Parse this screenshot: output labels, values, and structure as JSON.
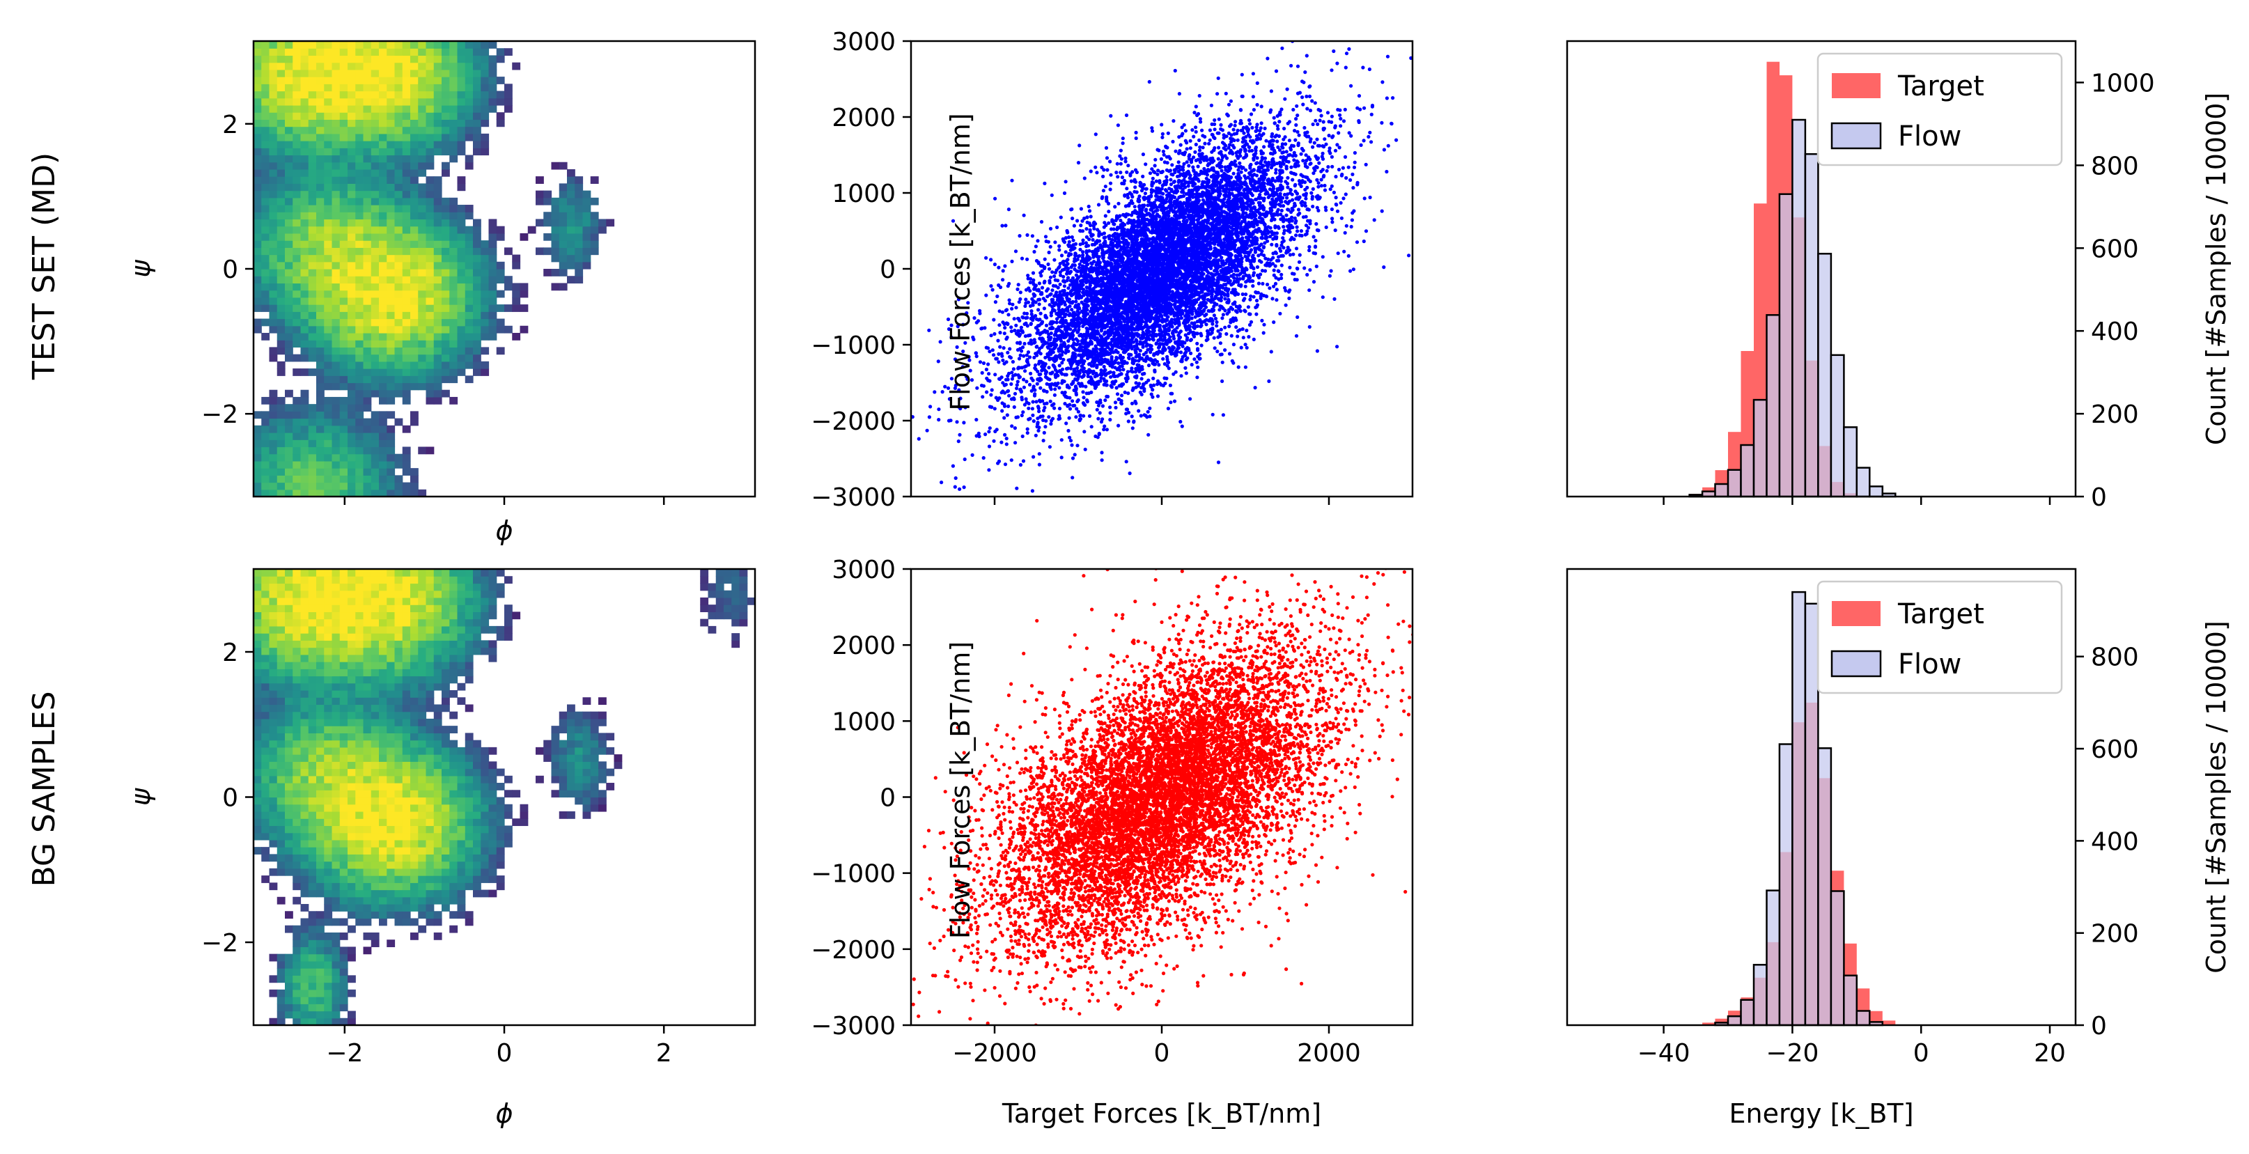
{
  "row_labels": [
    "TEST SET (MD)",
    "BG SAMPLES"
  ],
  "colors": {
    "target": "#ff6666",
    "flow_fill": "#c5c9ef",
    "scatter_test": "#0000ff",
    "scatter_bg": "#ff0000",
    "viridis": [
      "#440154",
      "#472c7a",
      "#3b518b",
      "#2c718e",
      "#21908d",
      "#27ad81",
      "#5cc863",
      "#aadc32",
      "#fde725"
    ]
  },
  "chart_data": [
    {
      "id": "ramachandran_test",
      "type": "heatmap",
      "xlabel": "ϕ",
      "ylabel": "ψ",
      "xlim": [
        -3.14159,
        3.14159
      ],
      "ylim": [
        -3.14159,
        3.14159
      ],
      "xticks": [
        -2,
        0,
        2
      ],
      "xtick_labels": [],
      "yticks": [
        -2,
        0,
        2
      ],
      "ytick_labels": [
        "−2",
        "0",
        "2"
      ],
      "modes": [
        {
          "phi": -2.45,
          "psi": 2.7,
          "weight": 0.95
        },
        {
          "phi": -1.45,
          "psi": 2.7,
          "weight": 0.9
        },
        {
          "phi": -1.4,
          "psi": -0.35,
          "weight": 1.0
        },
        {
          "phi": -2.2,
          "psi": 0.3,
          "weight": 0.5
        },
        {
          "phi": -2.4,
          "psi": -3.0,
          "weight": 0.35
        },
        {
          "phi": 0.85,
          "psi": 0.6,
          "weight": 0.12
        }
      ]
    },
    {
      "id": "forces_test",
      "type": "scatter",
      "xlabel": "",
      "ylabel": "Flow Forces [k_BT/nm]",
      "xlim": [
        -3000,
        3000
      ],
      "ylim": [
        -3000,
        3000
      ],
      "xticks": [
        -2000,
        0,
        2000
      ],
      "xtick_labels": [],
      "yticks": [
        -3000,
        -2000,
        -1000,
        0,
        1000,
        2000,
        3000
      ],
      "ytick_labels": [
        "−3000",
        "−2000",
        "−1000",
        "0",
        "1000",
        "2000",
        "3000"
      ],
      "correlation": 0.67,
      "std": 850
    },
    {
      "id": "energy_test",
      "type": "bar",
      "xlabel": "",
      "ylabel": "Count   [#Samples / 10000]",
      "xlim": [
        -55,
        24
      ],
      "ylim": [
        0,
        1100
      ],
      "xticks": [
        -40,
        -20,
        0,
        20
      ],
      "xtick_labels": [],
      "yticks": [
        0,
        200,
        400,
        600,
        800,
        1000
      ],
      "ytick_labels": [
        "0",
        "200",
        "400",
        "600",
        "800",
        "1000"
      ],
      "bin_edges": [
        -33,
        31
      ],
      "legend": [
        "Target",
        "Flow"
      ],
      "legend_position": "upper right",
      "series": [
        {
          "name": "Target",
          "mean": -24,
          "sd": 4.0,
          "skew": 5.0,
          "peak": 1050
        },
        {
          "name": "Flow",
          "mean": -21,
          "sd": 5.0,
          "skew": 6.0,
          "peak": 910
        }
      ]
    },
    {
      "id": "ramachandran_bg",
      "type": "heatmap",
      "xlabel": "ϕ",
      "ylabel": "ψ",
      "xlim": [
        -3.14159,
        3.14159
      ],
      "ylim": [
        -3.14159,
        3.14159
      ],
      "xticks": [
        -2,
        0,
        2
      ],
      "xtick_labels": [
        "−2",
        "0",
        "2"
      ],
      "yticks": [
        -2,
        0,
        2
      ],
      "ytick_labels": [
        "−2",
        "0",
        "2"
      ],
      "modes": [
        {
          "phi": -2.45,
          "psi": 2.7,
          "weight": 0.95
        },
        {
          "phi": -1.45,
          "psi": 2.7,
          "weight": 0.9
        },
        {
          "phi": -1.4,
          "psi": -0.35,
          "weight": 1.0
        },
        {
          "phi": -2.2,
          "psi": 0.3,
          "weight": 0.5
        },
        {
          "phi": -2.4,
          "psi": -2.6,
          "weight": 0.3
        },
        {
          "phi": 0.95,
          "psi": 0.5,
          "weight": 0.12
        },
        {
          "phi": 2.8,
          "psi": 2.8,
          "weight": 0.05
        }
      ]
    },
    {
      "id": "forces_bg",
      "type": "scatter",
      "xlabel": "Target Forces [k_BT/nm]",
      "ylabel": "Flow Forces [k_BT/nm]",
      "xlim": [
        -3000,
        3000
      ],
      "ylim": [
        -3000,
        3000
      ],
      "xticks": [
        -2000,
        0,
        2000
      ],
      "xtick_labels": [
        "−2000",
        "0",
        "2000"
      ],
      "yticks": [
        -3000,
        -2000,
        -1000,
        0,
        1000,
        2000,
        3000
      ],
      "ytick_labels": [
        "−3000",
        "−2000",
        "−1000",
        "0",
        "1000",
        "2000",
        "3000"
      ],
      "correlation": 0.55,
      "std": 950
    },
    {
      "id": "energy_bg",
      "type": "bar",
      "xlabel": "Energy   [k_BT]",
      "ylabel": "Count   [#Samples / 10000]",
      "xlim": [
        -55,
        24
      ],
      "ylim": [
        0,
        990
      ],
      "xticks": [
        -40,
        -20,
        0,
        20
      ],
      "xtick_labels": [
        "−40",
        "−20",
        "0",
        "20"
      ],
      "yticks": [
        0,
        200,
        400,
        600,
        800
      ],
      "ytick_labels": [
        "0",
        "200",
        "400",
        "600",
        "800"
      ],
      "legend": [
        "Target",
        "Flow"
      ],
      "legend_position": "upper right",
      "series": [
        {
          "name": "Target",
          "mean": -20,
          "sd": 5.0,
          "skew": 9.0,
          "peak": 700
        },
        {
          "name": "Flow",
          "mean": -20,
          "sd": 4.0,
          "skew": 5.5,
          "peak": 940
        }
      ]
    }
  ]
}
